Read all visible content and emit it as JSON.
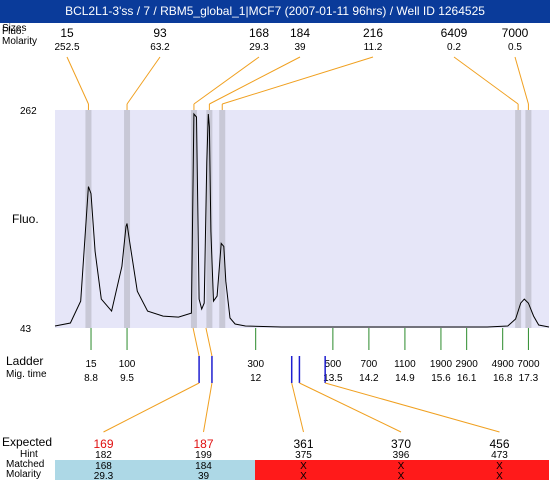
{
  "title": "BCL2L1-3'ss / 7 / RBM5_global_1|MCF7 (2007-01-11 96hrs) / Well ID 1264525",
  "row_labels": {
    "peak_sizes": "Sizes",
    "peak_fluo": "Fluo.",
    "molarity": "Molarity",
    "fluo_axis": "Fluo.",
    "ladder": "Ladder",
    "mig_time": "Mig. time",
    "expected": "Expected",
    "hint": "Hint",
    "matched": "Matched",
    "molarity_bottom": "Molarity"
  },
  "colors": {
    "title_bg": "#0a3b9a",
    "plot_bg": "#e6e6f8",
    "peak_band": "#c8c8d6",
    "peak_leader": "#f0a020",
    "ladder_tick": "#2a8a2a",
    "marker": "#1f1fd0",
    "matched_ok": "#add8e6",
    "matched_fail": "#ff1a1a",
    "expected_hit": "#e01010"
  },
  "chart_data": {
    "type": "line",
    "xlabel": "",
    "ylabel": "Fluo.",
    "ylim": [
      43,
      262
    ],
    "y_ticks": [
      "262",
      "43"
    ],
    "xlim": [
      8.1,
      17.7
    ],
    "trace": {
      "x": [
        8.1,
        8.4,
        8.6,
        8.75,
        8.8,
        8.88,
        9.0,
        9.2,
        9.4,
        9.48,
        9.5,
        9.55,
        9.7,
        9.9,
        10.2,
        10.5,
        10.75,
        10.8,
        10.85,
        10.9,
        10.95,
        11.0,
        11.05,
        11.08,
        11.1,
        11.13,
        11.18,
        11.25,
        11.33,
        11.38,
        11.42,
        11.5,
        11.6,
        11.8,
        12.5,
        13.5,
        14.5,
        15.5,
        16.5,
        16.9,
        17.05,
        17.15,
        17.22,
        17.3,
        17.4,
        17.5,
        17.7
      ],
      "y": [
        45,
        48,
        70,
        185,
        178,
        120,
        72,
        60,
        105,
        145,
        148,
        130,
        80,
        60,
        55,
        54,
        58,
        258,
        255,
        72,
        62,
        68,
        210,
        258,
        245,
        140,
        70,
        75,
        128,
        125,
        90,
        53,
        47,
        45,
        44,
        44,
        44,
        44,
        44,
        45,
        52,
        68,
        72,
        68,
        55,
        46,
        44
      ]
    },
    "peaks": [
      {
        "size": "15",
        "molarity": "252.5",
        "time": 8.75
      },
      {
        "size": "93",
        "molarity": "63.2",
        "time": 9.5
      },
      {
        "size": "168",
        "molarity": "29.3",
        "time": 10.8
      },
      {
        "size": "184",
        "molarity": "39",
        "time": 11.1
      },
      {
        "size": "216",
        "molarity": "11.2",
        "time": 11.35
      },
      {
        "size": "6409",
        "molarity": "0.2",
        "time": 17.1
      },
      {
        "size": "7000",
        "molarity": "0.5",
        "time": 17.3
      }
    ],
    "ladder": [
      {
        "size": "15",
        "time": "8.8",
        "t": 8.8
      },
      {
        "size": "100",
        "time": "9.5",
        "t": 9.5
      },
      {
        "size": "300",
        "time": "12",
        "t": 12.0
      },
      {
        "size": "500",
        "time": "13.5",
        "t": 13.5
      },
      {
        "size": "700",
        "time": "14.2",
        "t": 14.2
      },
      {
        "size": "1100",
        "time": "14.9",
        "t": 14.9
      },
      {
        "size": "1900",
        "time": "15.6",
        "t": 15.6
      },
      {
        "size": "2900",
        "time": "16.1",
        "t": 16.1
      },
      {
        "size": "4900",
        "time": "16.8",
        "t": 16.8
      },
      {
        "size": "7000",
        "time": "17.3",
        "t": 17.3
      }
    ],
    "expected_fragments": [
      {
        "expected": "169",
        "hint": "182",
        "matched": "168",
        "molarity": "29.3",
        "status": "matched",
        "marker_time": 10.9
      },
      {
        "expected": "187",
        "hint": "199",
        "matched": "184",
        "molarity": "39",
        "status": "matched",
        "marker_time": 11.15
      },
      {
        "expected": "361",
        "hint": "375",
        "matched": "X",
        "molarity": "X",
        "status": "missing",
        "marker_time": 12.7
      },
      {
        "expected": "370",
        "hint": "396",
        "matched": "X",
        "molarity": "X",
        "status": "missing",
        "marker_time": 12.85
      },
      {
        "expected": "456",
        "hint": "473",
        "matched": "X",
        "molarity": "X",
        "status": "missing",
        "marker_time": 13.35
      }
    ]
  }
}
